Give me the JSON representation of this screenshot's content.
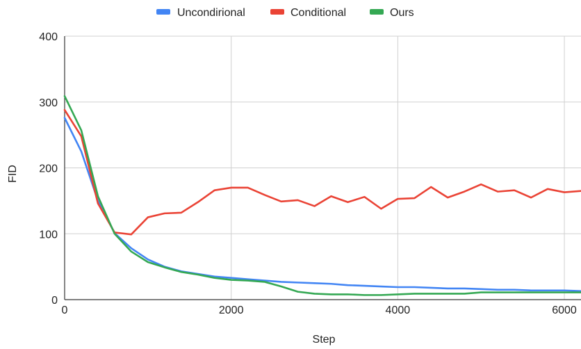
{
  "chart_data": {
    "type": "line",
    "title": "",
    "xlabel": "Step",
    "ylabel": "FID",
    "xlim": [
      0,
      6200
    ],
    "ylim": [
      0,
      400
    ],
    "x_ticks": [
      0,
      2000,
      4000,
      6000
    ],
    "y_ticks": [
      0,
      100,
      200,
      300,
      400
    ],
    "x_tick_labels": [
      "0",
      "2000",
      "4000",
      "6000"
    ],
    "y_tick_labels": [
      "0",
      "100",
      "200",
      "300",
      "400"
    ],
    "grid": true,
    "legend_position": "top",
    "x": [
      0,
      200,
      400,
      600,
      800,
      1000,
      1200,
      1400,
      1600,
      1800,
      2000,
      2200,
      2400,
      2600,
      2800,
      3000,
      3200,
      3400,
      3600,
      3800,
      4000,
      4200,
      4400,
      4600,
      4800,
      5000,
      5200,
      5400,
      5600,
      5800,
      6000,
      6200
    ],
    "series": [
      {
        "name": "Uncondirional",
        "color": "#4285f4",
        "values": [
          276,
          225,
          150,
          101,
          78,
          61,
          50,
          43,
          39,
          35,
          33,
          31,
          29,
          27,
          26,
          25,
          24,
          22,
          21,
          20,
          19,
          19,
          18,
          17,
          17,
          16,
          15,
          15,
          14,
          14,
          14,
          13
        ]
      },
      {
        "name": "Conditional",
        "color": "#ea4335",
        "values": [
          288,
          248,
          146,
          102,
          99,
          125,
          131,
          132,
          148,
          166,
          170,
          170,
          159,
          149,
          151,
          142,
          157,
          148,
          156,
          138,
          153,
          154,
          171,
          155,
          164,
          175,
          164,
          166,
          155,
          168,
          163,
          165
        ]
      },
      {
        "name": "Ours",
        "color": "#34a853",
        "values": [
          309,
          257,
          157,
          100,
          73,
          57,
          49,
          42,
          38,
          33,
          30,
          29,
          27,
          20,
          12,
          9,
          8,
          8,
          7,
          7,
          8,
          9,
          9,
          9,
          9,
          11,
          11,
          11,
          11,
          11,
          11,
          11
        ]
      }
    ]
  }
}
